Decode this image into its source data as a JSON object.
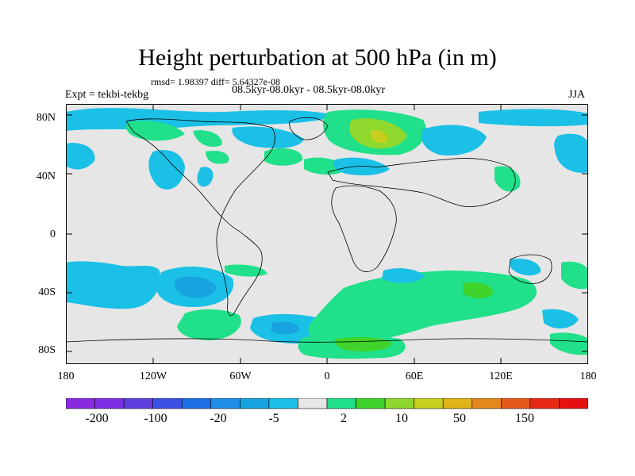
{
  "title": "Height perturbation at 500 hPa (in m)",
  "stats": "rmsd= 1.98397 diff= 5.64327e-08",
  "left_label": "Expt = tekbi-tekbg",
  "center_label": "08.5kyr-08.0kyr - 08.5kyr-08.0kyr",
  "right_label": "JJA",
  "lat_labels": [
    "80N",
    "40N",
    "0",
    "40S",
    "80S"
  ],
  "lon_labels": [
    "180",
    "120W",
    "60W",
    "0",
    "60E",
    "120E",
    "180"
  ],
  "colorbar": {
    "labels": [
      "-200",
      "-100",
      "-20",
      "-5",
      "2",
      "10",
      "50",
      "150"
    ],
    "colors": [
      "#8a2be2",
      "#7d2fe6",
      "#5f3fe0",
      "#3c52e4",
      "#1e6fe6",
      "#1f8fe8",
      "#16a3e0",
      "#1bc0e6",
      "#e6e6e6",
      "#20e08a",
      "#3fd32b",
      "#8fd82d",
      "#c8cf1f",
      "#e0b41a",
      "#e6881e",
      "#e85a1c",
      "#e82a14",
      "#e61010"
    ]
  },
  "field_colors": {
    "background": "#e6e6e6",
    "negative_light": "#1bc0e6",
    "negative_mid": "#16a3e0",
    "negative_dark": "#1f8fe8",
    "positive_light": "#20e08a",
    "positive_mid": "#3fd32b",
    "positive_high": "#8fd82d"
  }
}
